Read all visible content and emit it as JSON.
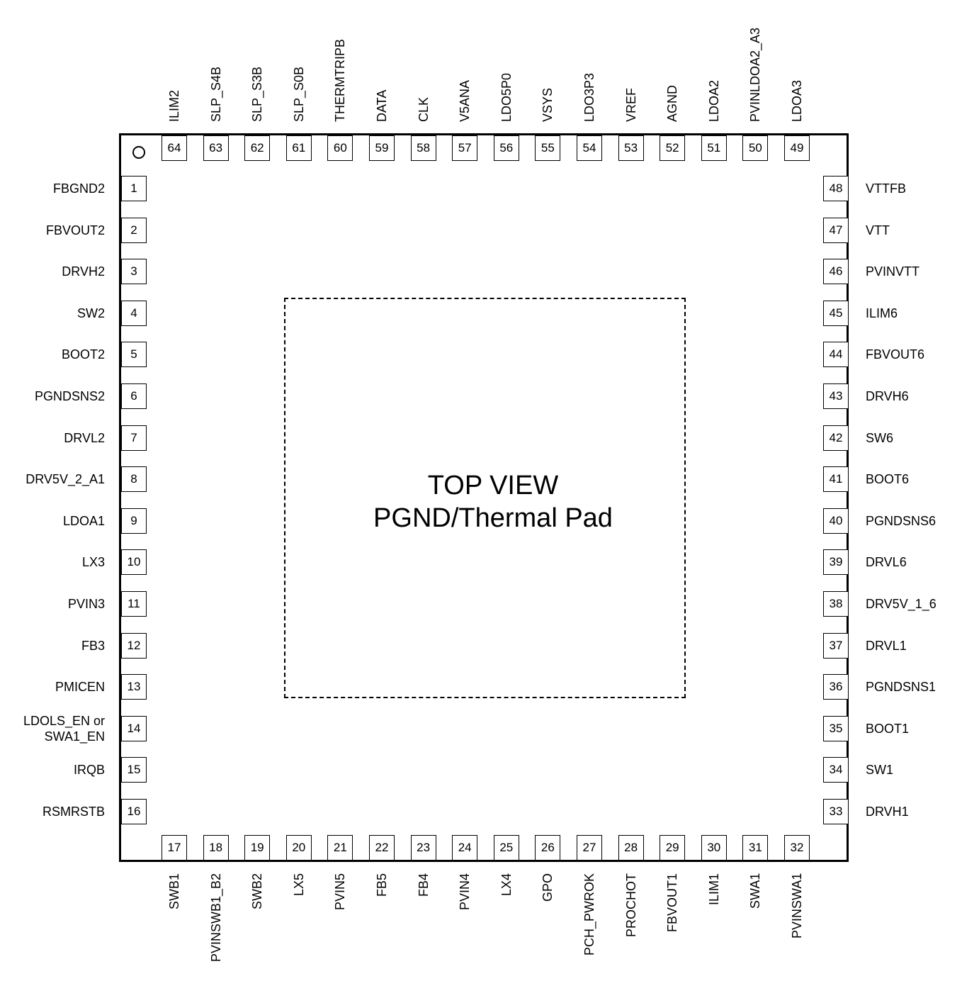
{
  "diagram": {
    "title_line1": "TOP VIEW",
    "title_line2": "PGND/Thermal Pad"
  },
  "pins": {
    "left": [
      {
        "num": "1",
        "name": "FBGND2"
      },
      {
        "num": "2",
        "name": "FBVOUT2"
      },
      {
        "num": "3",
        "name": "DRVH2"
      },
      {
        "num": "4",
        "name": "SW2"
      },
      {
        "num": "5",
        "name": "BOOT2"
      },
      {
        "num": "6",
        "name": "PGNDSNS2"
      },
      {
        "num": "7",
        "name": "DRVL2"
      },
      {
        "num": "8",
        "name": "DRV5V_2_A1"
      },
      {
        "num": "9",
        "name": "LDOA1"
      },
      {
        "num": "10",
        "name": "LX3"
      },
      {
        "num": "11",
        "name": "PVIN3"
      },
      {
        "num": "12",
        "name": "FB3"
      },
      {
        "num": "13",
        "name": "PMICEN"
      },
      {
        "num": "14",
        "name": "LDOLS_EN or\nSWA1_EN"
      },
      {
        "num": "15",
        "name": "IRQB"
      },
      {
        "num": "16",
        "name": "RSMRSTB"
      }
    ],
    "bottom": [
      {
        "num": "17",
        "name": "SWB1"
      },
      {
        "num": "18",
        "name": "PVINSWB1_B2"
      },
      {
        "num": "19",
        "name": "SWB2"
      },
      {
        "num": "20",
        "name": "LX5"
      },
      {
        "num": "21",
        "name": "PVIN5"
      },
      {
        "num": "22",
        "name": "FB5"
      },
      {
        "num": "23",
        "name": "FB4"
      },
      {
        "num": "24",
        "name": "PVIN4"
      },
      {
        "num": "25",
        "name": "LX4"
      },
      {
        "num": "26",
        "name": "GPO"
      },
      {
        "num": "27",
        "name": "PCH_PWROK"
      },
      {
        "num": "28",
        "name": "PROCHOT"
      },
      {
        "num": "29",
        "name": "FBVOUT1"
      },
      {
        "num": "30",
        "name": "ILIM1"
      },
      {
        "num": "31",
        "name": "SWA1"
      },
      {
        "num": "32",
        "name": "PVINSWA1"
      }
    ],
    "right": [
      {
        "num": "48",
        "name": "VTTFB"
      },
      {
        "num": "47",
        "name": "VTT"
      },
      {
        "num": "46",
        "name": "PVINVTT"
      },
      {
        "num": "45",
        "name": "ILIM6"
      },
      {
        "num": "44",
        "name": "FBVOUT6"
      },
      {
        "num": "43",
        "name": "DRVH6"
      },
      {
        "num": "42",
        "name": "SW6"
      },
      {
        "num": "41",
        "name": "BOOT6"
      },
      {
        "num": "40",
        "name": "PGNDSNS6"
      },
      {
        "num": "39",
        "name": "DRVL6"
      },
      {
        "num": "38",
        "name": "DRV5V_1_6"
      },
      {
        "num": "37",
        "name": "DRVL1"
      },
      {
        "num": "36",
        "name": "PGNDSNS1"
      },
      {
        "num": "35",
        "name": "BOOT1"
      },
      {
        "num": "34",
        "name": "SW1"
      },
      {
        "num": "33",
        "name": "DRVH1"
      }
    ],
    "top": [
      {
        "num": "64",
        "name": "ILIM2"
      },
      {
        "num": "63",
        "name": "SLP_S4B"
      },
      {
        "num": "62",
        "name": "SLP_S3B"
      },
      {
        "num": "61",
        "name": "SLP_S0B"
      },
      {
        "num": "60",
        "name": "THERMTRIPB"
      },
      {
        "num": "59",
        "name": "DATA"
      },
      {
        "num": "58",
        "name": "CLK"
      },
      {
        "num": "57",
        "name": "V5ANA"
      },
      {
        "num": "56",
        "name": "LDO5P0"
      },
      {
        "num": "55",
        "name": "VSYS"
      },
      {
        "num": "54",
        "name": "LDO3P3"
      },
      {
        "num": "53",
        "name": "VREF"
      },
      {
        "num": "52",
        "name": "AGND"
      },
      {
        "num": "51",
        "name": "LDOA2"
      },
      {
        "num": "50",
        "name": "PVINLDOA2_A3"
      },
      {
        "num": "49",
        "name": "LDOA3"
      }
    ]
  }
}
